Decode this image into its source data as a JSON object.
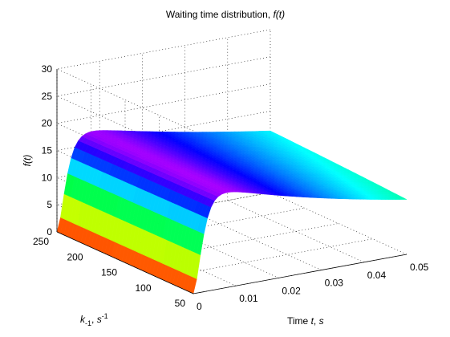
{
  "chart_data": {
    "type": "surface",
    "title": "Waiting time distribution, f(t)",
    "title_parts": [
      "Waiting time distribution, ",
      "f(t)"
    ],
    "xlabel": "Time t, s",
    "ylabel": "k_-1, s^-1",
    "zlabel": "f(t)",
    "xlim": [
      0,
      0.05
    ],
    "ylim": [
      50,
      250
    ],
    "zlim": [
      0,
      30
    ],
    "x_ticks": [
      "0",
      "0.01",
      "0.02",
      "0.03",
      "0.04",
      "0.05"
    ],
    "y_ticks": [
      "50",
      "100",
      "150",
      "200",
      "250"
    ],
    "z_ticks": [
      "0",
      "5",
      "10",
      "15",
      "20",
      "25",
      "30"
    ],
    "grid": true,
    "colormap": "hsv",
    "surface_samples": [
      {
        "k_minus1": 250,
        "t": [
          0,
          0.0025,
          0.005,
          0.01,
          0.02,
          0.03,
          0.04,
          0.05
        ],
        "f": [
          0,
          14,
          18.5,
          17.8,
          15.0,
          12.4,
          9.9,
          7.8
        ]
      },
      {
        "k_minus1": 150,
        "t": [
          0,
          0.0025,
          0.005,
          0.01,
          0.02,
          0.03,
          0.04,
          0.05
        ],
        "f": [
          0,
          14,
          18.5,
          18.0,
          15.3,
          12.6,
          10.0,
          7.9
        ]
      },
      {
        "k_minus1": 50,
        "t": [
          0,
          0.0025,
          0.005,
          0.01,
          0.02,
          0.03,
          0.04,
          0.05
        ],
        "f": [
          0,
          14,
          18.5,
          18.2,
          15.5,
          12.8,
          10.2,
          8.0
        ]
      }
    ]
  }
}
